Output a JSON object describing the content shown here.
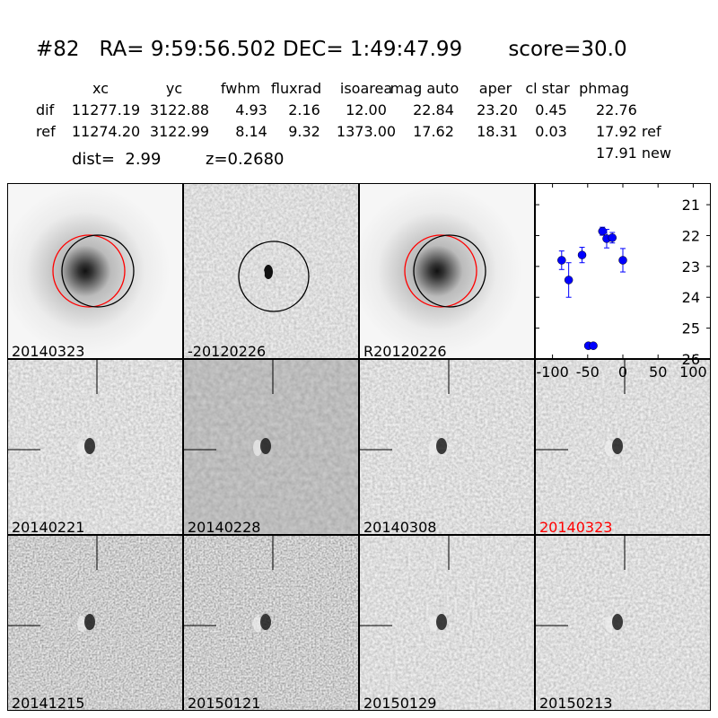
{
  "header": {
    "title": "#82   RA= 9:59:56.502 DEC= 1:49:47.99       score=30.0",
    "columns": [
      "xc",
      "yc",
      "fwhm",
      "fluxrad",
      "isoarea",
      "mag auto",
      "aper",
      "cl star",
      "phmag"
    ],
    "rows": [
      {
        "label": "dif",
        "values": [
          "11277.19",
          "3122.88",
          "4.93",
          "2.16",
          "12.00",
          "22.84",
          "23.20",
          "0.45",
          "22.76"
        ]
      },
      {
        "label": "ref",
        "values": [
          "11274.20",
          "3122.99",
          "8.14",
          "9.32",
          "1373.00",
          "17.62",
          "18.31",
          "0.03",
          "17.92 ref"
        ]
      }
    ],
    "extra": "17.91 new",
    "dist": "dist=  2.99",
    "z": "z=0.2680"
  },
  "panels": [
    {
      "label": "20140323",
      "kind": "galaxy",
      "circles": "both"
    },
    {
      "label": "-20120226",
      "kind": "diff",
      "circles": "black"
    },
    {
      "label": "R20120226",
      "kind": "galaxy",
      "circles": "both"
    },
    {
      "label": "20140221",
      "kind": "noise"
    },
    {
      "label": "20140228",
      "kind": "smooth"
    },
    {
      "label": "20140308",
      "kind": "noise"
    },
    {
      "label": "20140323",
      "kind": "noise",
      "highlight": "#ff0000"
    },
    {
      "label": "20141215",
      "kind": "noisy"
    },
    {
      "label": "20150121",
      "kind": "noisy"
    },
    {
      "label": "20150129",
      "kind": "noise"
    },
    {
      "label": "20150213",
      "kind": "noise"
    }
  ],
  "chart_data": {
    "type": "scatter",
    "title": "",
    "xlabel": "",
    "ylabel": "",
    "xlim": [
      -125,
      125
    ],
    "ylim": [
      26,
      20.3
    ],
    "y_inverted": true,
    "xticks": [
      "-100",
      "-50",
      "0",
      "50",
      "100"
    ],
    "yticks": [
      "21",
      "22",
      "23",
      "24",
      "25",
      "26"
    ],
    "color": "#0000ff",
    "points": [
      {
        "x": -87,
        "y": 22.8,
        "err": 0.3
      },
      {
        "x": -77,
        "y": 23.44,
        "err": 0.56
      },
      {
        "x": -58,
        "y": 22.63,
        "err": 0.25
      },
      {
        "x": -49,
        "y": 25.57,
        "err": 0.05
      },
      {
        "x": -42,
        "y": 25.57,
        "err": 0.05
      },
      {
        "x": -29,
        "y": 21.86,
        "err": 0.13
      },
      {
        "x": -23,
        "y": 22.1,
        "err": 0.3
      },
      {
        "x": -15,
        "y": 22.07,
        "err": 0.17
      },
      {
        "x": 0,
        "y": 22.8,
        "err": 0.38
      }
    ]
  }
}
